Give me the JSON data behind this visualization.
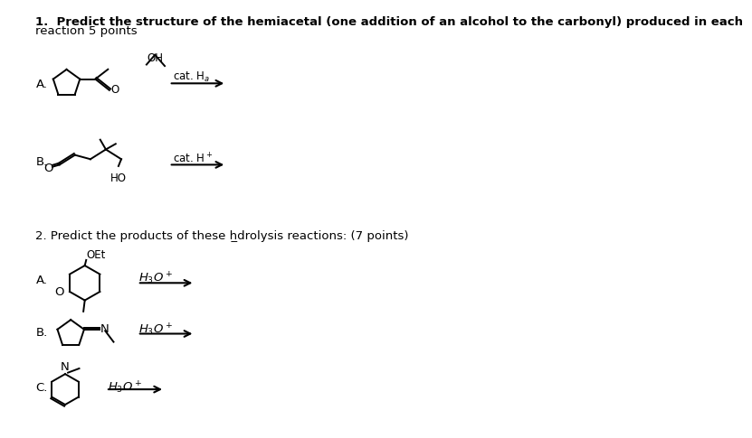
{
  "title1": "1.  Predict the structure of the hemiacetal (one addition of an alcohol to the carbonyl) produced in each",
  "title1b": "reaction 5 points",
  "title2": "2. Predict the products of these h̲drolysis reactions: (7 points)",
  "bg_color": "#ffffff",
  "text_color": "#000000",
  "font_size_body": 9.5,
  "font_size_label": 9.5,
  "font_size_small": 8.5
}
